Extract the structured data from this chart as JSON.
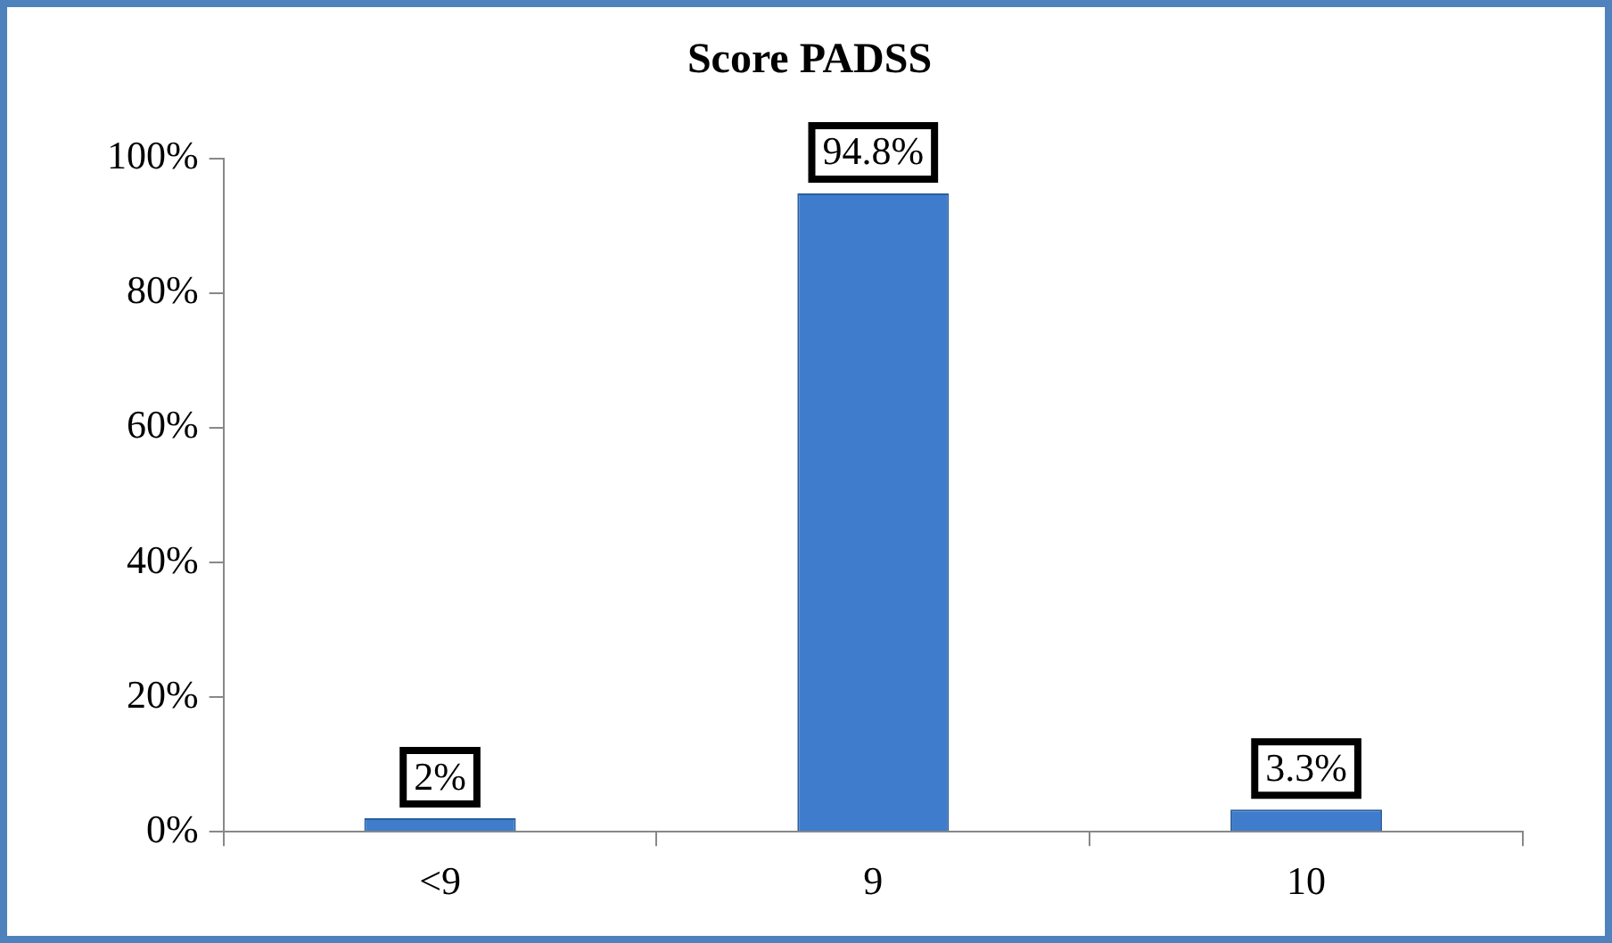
{
  "chart_data": {
    "type": "bar",
    "title": "Score PADSS",
    "categories": [
      "<9",
      "9",
      "10"
    ],
    "values": [
      2,
      94.8,
      3.3
    ],
    "value_labels": [
      "2%",
      "94.8%",
      "3.3%"
    ],
    "color": "#3f7ccc",
    "ylim": [
      0,
      100
    ],
    "yticks": [
      {
        "value": 0,
        "label": "0%"
      },
      {
        "value": 20,
        "label": "20%"
      },
      {
        "value": 40,
        "label": "40%"
      },
      {
        "value": 60,
        "label": "60%"
      },
      {
        "value": 80,
        "label": "80%"
      },
      {
        "value": 100,
        "label": "100%"
      }
    ],
    "grid": false,
    "legend": false
  }
}
